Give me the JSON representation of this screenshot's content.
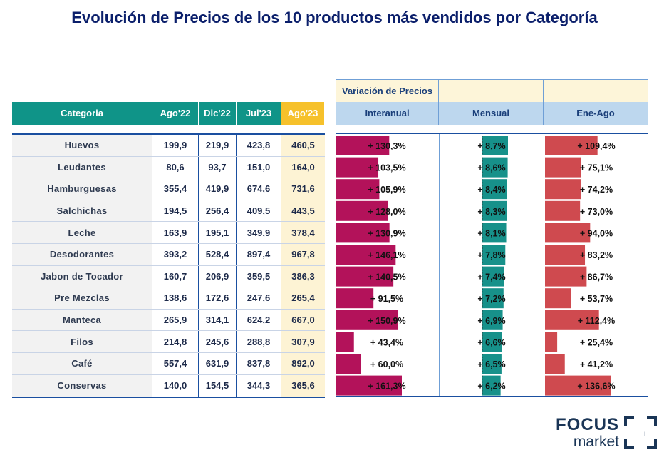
{
  "title": "Evolución de Precios de los 10 productos más vendidos por Categoría",
  "table": {
    "headers": [
      "Categoria",
      "Ago'22",
      "Dic'22",
      "Jul'23",
      "Ago'23"
    ],
    "right_group_header": "Variación de Precios",
    "right_headers": [
      "Interanual",
      "Mensual",
      "Ene-Ago"
    ]
  },
  "colors": {
    "interanual": "#b3125a",
    "mensual": "#17918a",
    "eneago": "#cf4a4f",
    "header_teal": "#0f9488",
    "header_gold": "#f6c12b"
  },
  "chart_data": {
    "type": "table",
    "categories": [
      "Huevos",
      "Leudantes",
      "Hamburguesas",
      "Salchichas",
      "Leche",
      "Desodorantes",
      "Jabon de Tocador",
      "Pre Mezclas",
      "Manteca",
      "Filos",
      "Café",
      "Conservas"
    ],
    "columns": {
      "ago22": [
        "199,9",
        "80,6",
        "355,4",
        "194,5",
        "163,9",
        "393,2",
        "160,7",
        "138,6",
        "265,9",
        "214,8",
        "557,4",
        "140,0"
      ],
      "dic22": [
        "219,9",
        "93,7",
        "419,9",
        "256,4",
        "195,1",
        "528,4",
        "206,9",
        "172,6",
        "314,1",
        "245,6",
        "631,9",
        "154,5"
      ],
      "jul23": [
        "423,8",
        "151,0",
        "674,6",
        "409,5",
        "349,9",
        "897,4",
        "359,5",
        "247,6",
        "624,2",
        "288,8",
        "837,8",
        "344,3"
      ],
      "ago23": [
        "460,5",
        "164,0",
        "731,6",
        "443,5",
        "378,4",
        "967,8",
        "386,3",
        "265,4",
        "667,0",
        "307,9",
        "892,0",
        "365,6"
      ]
    },
    "series": [
      {
        "name": "Interanual",
        "values": [
          130.3,
          103.5,
          105.9,
          128.0,
          130.9,
          146.1,
          140.5,
          91.5,
          150.9,
          43.4,
          60.0,
          161.3
        ],
        "labels": [
          "+ 130,3%",
          "+ 103,5%",
          "+ 105,9%",
          "+ 128,0%",
          "+ 130,9%",
          "+ 146,1%",
          "+ 140,5%",
          "+ 91,5%",
          "+ 150,9%",
          "+ 43,4%",
          "+ 60,0%",
          "+ 161,3%"
        ]
      },
      {
        "name": "Mensual",
        "values": [
          8.7,
          8.6,
          8.4,
          8.3,
          8.1,
          7.8,
          7.4,
          7.2,
          6.9,
          6.6,
          6.5,
          6.2
        ],
        "labels": [
          "+ 8,7%",
          "+ 8,6%",
          "+ 8,4%",
          "+ 8,3%",
          "+ 8,1%",
          "+ 7,8%",
          "+ 7,4%",
          "+ 7,2%",
          "+ 6,9%",
          "+ 6,6%",
          "+ 6,5%",
          "+ 6,2%"
        ]
      },
      {
        "name": "Ene-Ago",
        "values": [
          109.4,
          75.1,
          74.2,
          73.0,
          94.0,
          83.2,
          86.7,
          53.7,
          112.4,
          25.4,
          41.2,
          136.6
        ],
        "labels": [
          "+ 109,4%",
          "+ 75,1%",
          "+ 74,2%",
          "+ 73,0%",
          "+ 94,0%",
          "+ 83,2%",
          "+ 86,7%",
          "+ 53,7%",
          "+ 112,4%",
          "+ 25,4%",
          "+ 41,2%",
          "+ 136,6%"
        ]
      }
    ]
  },
  "logo": {
    "line1": "FOCUS",
    "line2": "market",
    "mark": "+"
  }
}
